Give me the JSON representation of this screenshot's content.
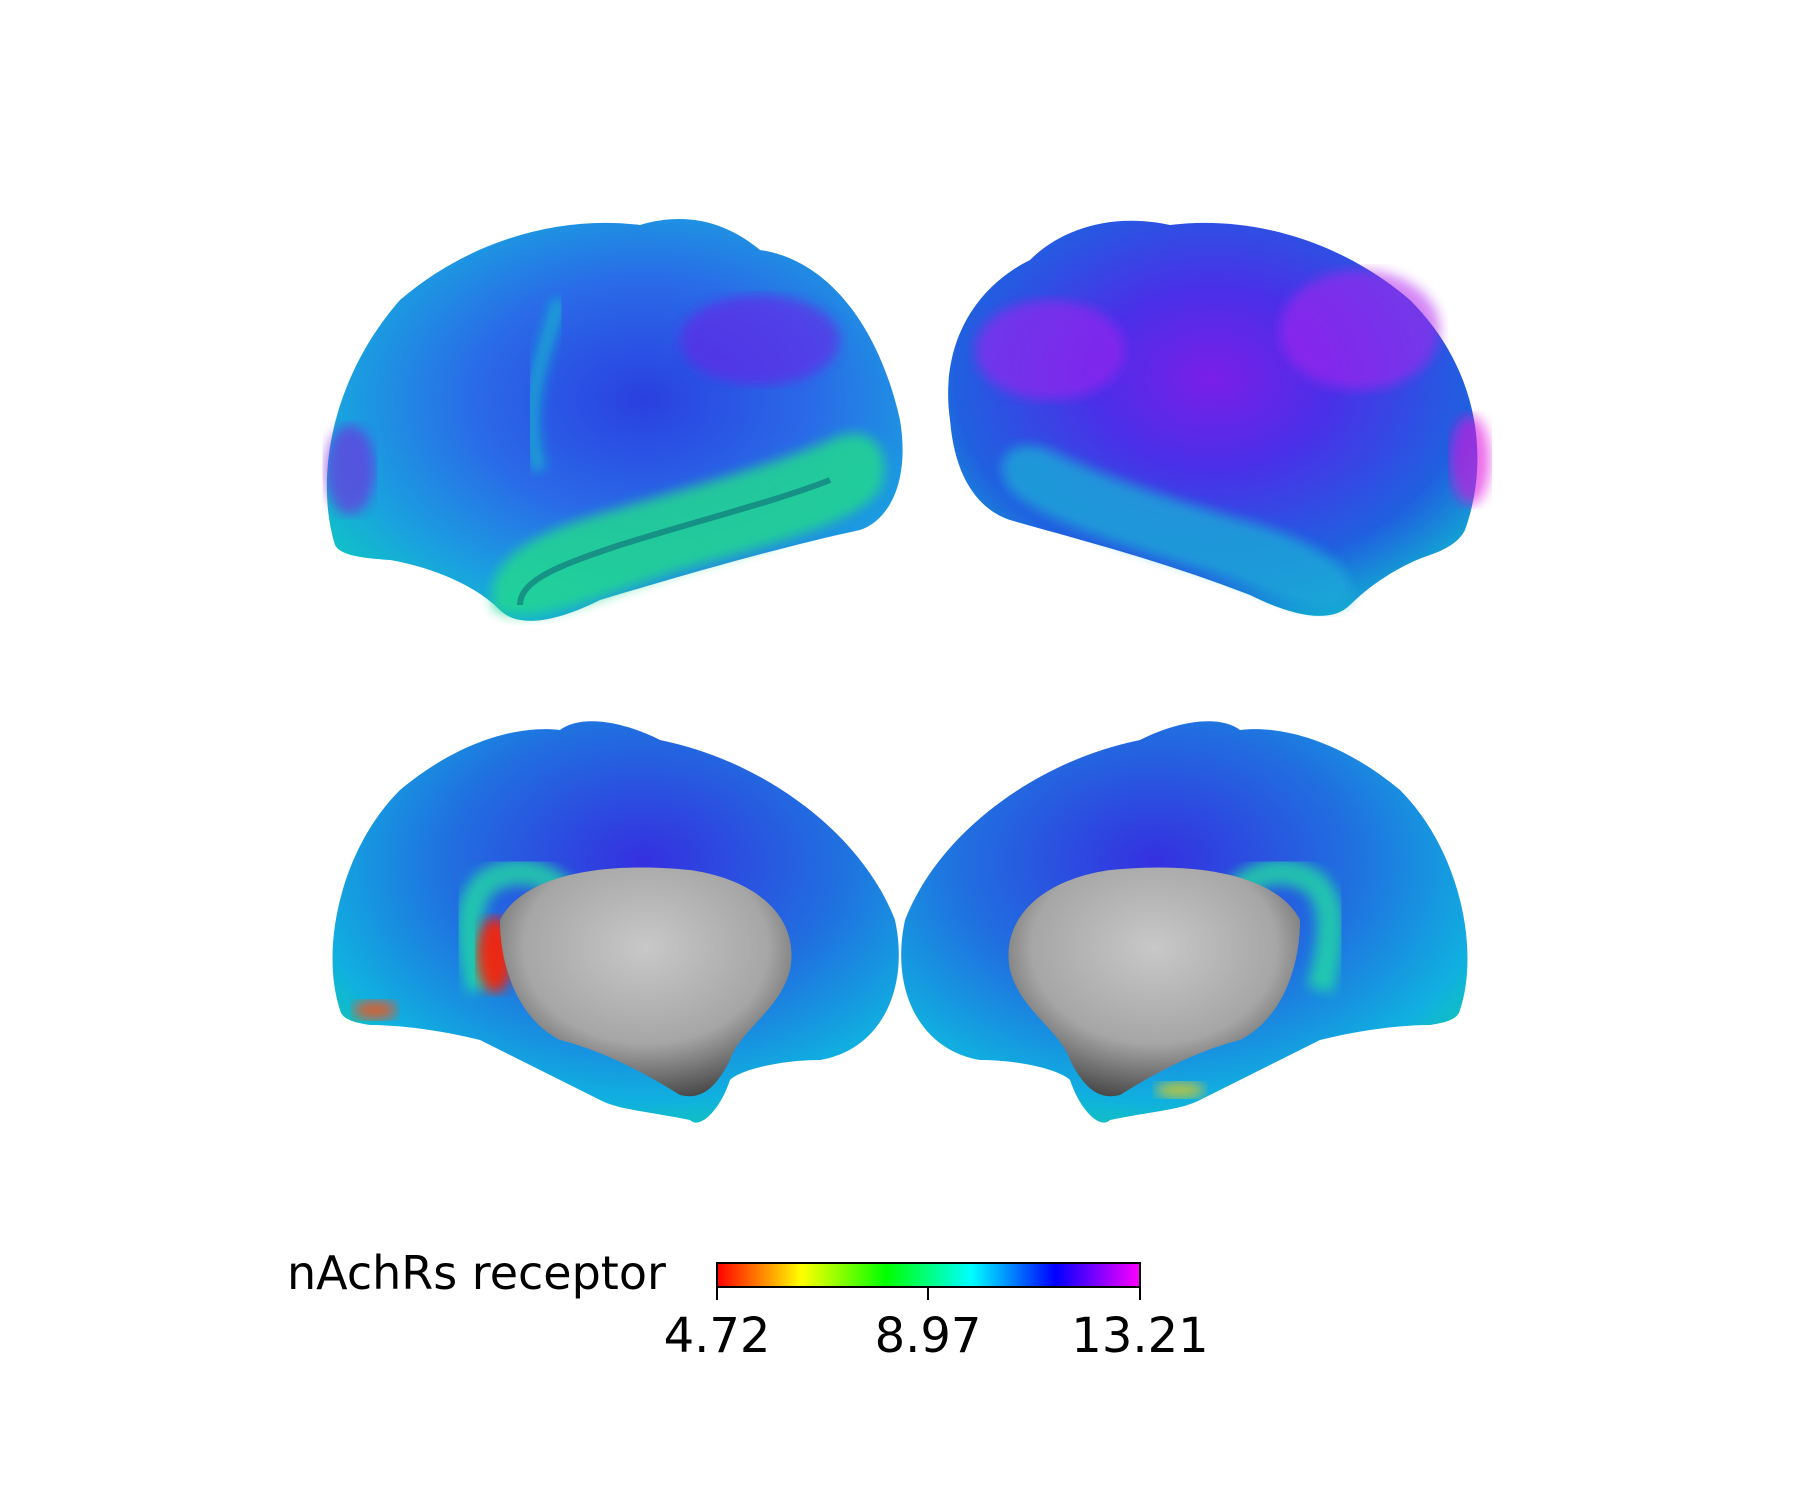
{
  "figure": {
    "views": [
      {
        "name": "left-lateral"
      },
      {
        "name": "right-lateral"
      },
      {
        "name": "left-medial"
      },
      {
        "name": "right-medial"
      }
    ]
  },
  "colorbar": {
    "label": "nAchRs receptor",
    "min": 4.72,
    "mid": 8.97,
    "max": 13.21,
    "tick_labels": [
      "4.72",
      "8.97",
      "13.21"
    ],
    "colormap": [
      "#ff0000",
      "#ffff00",
      "#00ff00",
      "#00ffff",
      "#0000ff",
      "#ff00ff"
    ]
  },
  "colors": {
    "medial_wall": "#a6a6a6",
    "background": "#ffffff"
  }
}
